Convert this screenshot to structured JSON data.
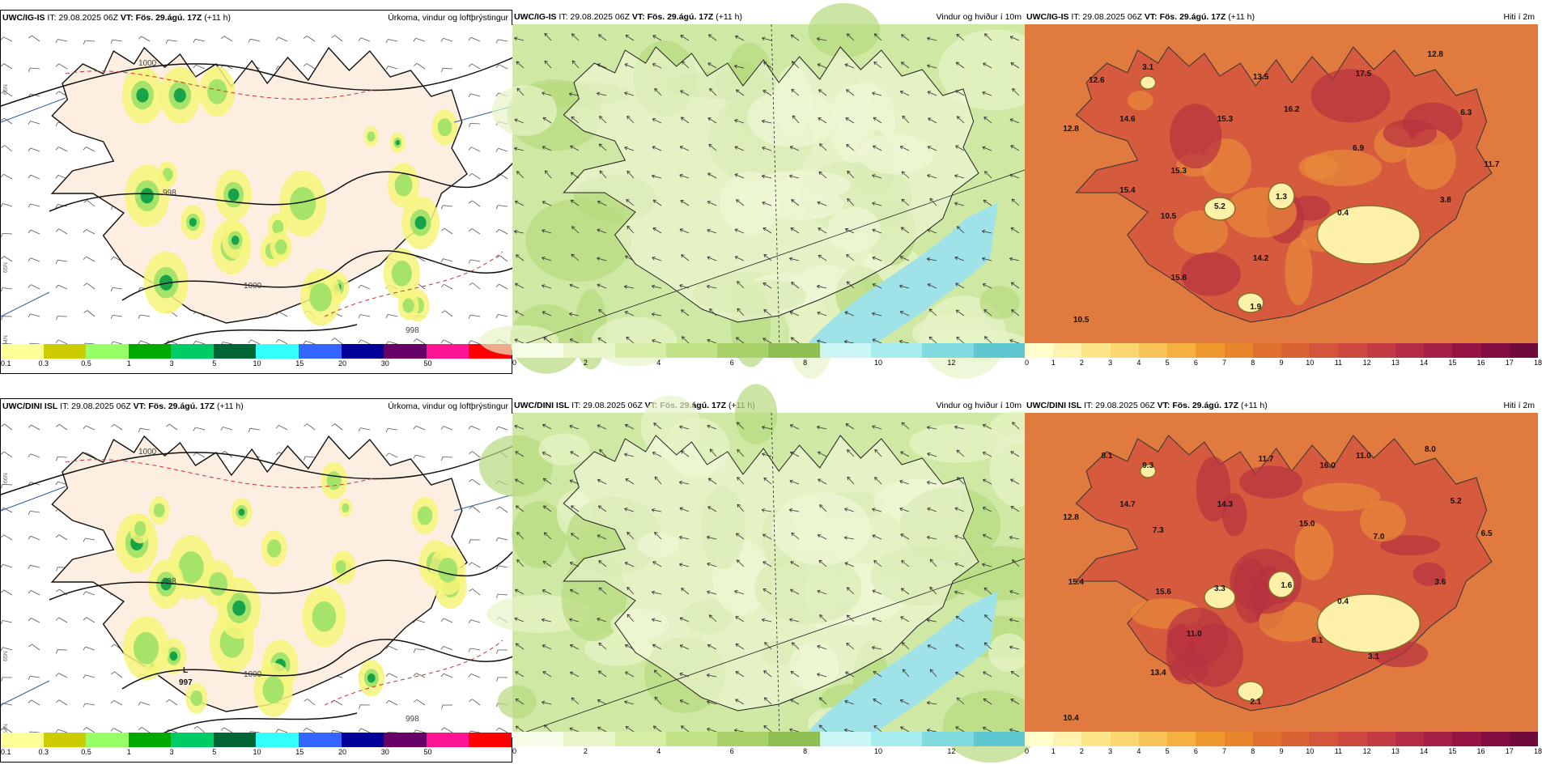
{
  "rows": [
    {
      "model": "UWC/IG-IS",
      "panels": [
        {
          "kind": "precip",
          "model": "UWC/IG-IS",
          "it_label": "IT: 29.08.2025 06Z",
          "vt_prefix": "VT:",
          "vt": "Fös. 29.ágú. 17Z",
          "lead": "(+11 h)",
          "title": "Úrkoma, vindur og loftþrýstingur",
          "isobars": [
            "1000",
            "998",
            "1000",
            "998"
          ],
          "grid_labels": [
            "66N",
            "65N",
            "64N"
          ],
          "low_center": null
        },
        {
          "kind": "wind",
          "model": "UWC/IG-IS",
          "it_label": "IT: 29.08.2025 06Z",
          "vt_prefix": "VT:",
          "vt": "Fös. 29.ágú. 17Z",
          "lead": "(+11 h)",
          "title": "Vindur og hviður í 10m"
        },
        {
          "kind": "temp",
          "model": "UWC/IG-IS",
          "it_label": "IT: 29.08.2025 06Z",
          "vt_prefix": "VT:",
          "vt": "Fös. 29.ágú. 17Z",
          "lead": "(+11 h)",
          "title": "Hiti í 2m",
          "values": [
            "12.6",
            "12.8",
            "14.6",
            "13.5",
            "15.3",
            "16.2",
            "17.5",
            "12.8",
            "6.3",
            "6.9",
            "11.7",
            "15.3",
            "15.4",
            "10.5",
            "5.2",
            "1.3",
            "0.4",
            "3.8",
            "14.2",
            "15.8",
            "1.9",
            "10.5",
            "3.1"
          ]
        }
      ]
    },
    {
      "model": "UWC/DINI ISL",
      "panels": [
        {
          "kind": "precip",
          "model": "UWC/DINI ISL",
          "it_label": "IT: 29.08.2025 06Z",
          "vt_prefix": "VT:",
          "vt": "Fös. 29.ágú. 17Z",
          "lead": "(+11 h)",
          "title": "Úrkoma, vindur og loftþrýstingur",
          "isobars": [
            "1000",
            "998",
            "1000",
            "998"
          ],
          "grid_labels": [
            "66N",
            "65N",
            "64N"
          ],
          "low_center": {
            "letter": "L",
            "value": "997"
          }
        },
        {
          "kind": "wind",
          "model": "UWC/DINI ISL",
          "it_label": "IT: 29.08.2025 06Z",
          "vt_prefix": "VT:",
          "vt": "Fös. 29.ágú. 17Z",
          "lead": "(+11 h)",
          "title": "Vindur og hviður í 10m"
        },
        {
          "kind": "temp",
          "model": "UWC/DINI ISL",
          "it_label": "IT: 29.08.2025 06Z",
          "vt_prefix": "VT:",
          "vt": "Fös. 29.ágú. 17Z",
          "lead": "(+11 h)",
          "title": "Hiti í 2m",
          "values": [
            "8.1",
            "9.3",
            "12.8",
            "14.7",
            "7.3",
            "14.3",
            "11.7",
            "16.0",
            "11.0",
            "8.0",
            "15.0",
            "5.2",
            "6.5",
            "7.0",
            "15.4",
            "15.6",
            "3.3",
            "1.6",
            "0.4",
            "3.6",
            "11.0",
            "8.1",
            "13.4",
            "3.1",
            "2.1",
            "10.4"
          ]
        }
      ]
    }
  ],
  "legends": {
    "precip": {
      "colors": [
        "#ffff99",
        "#cccc00",
        "#99ff66",
        "#00aa00",
        "#00cc66",
        "#006633",
        "#33ffff",
        "#3366ff",
        "#000099",
        "#660066",
        "#ff1493",
        "#ff0000"
      ],
      "ticks": [
        "0.1",
        "0.3",
        "0.5",
        "1",
        "3",
        "5",
        "10",
        "15",
        "20",
        "30",
        "50"
      ]
    },
    "wind": {
      "colors": [
        "#f7fce8",
        "#e9f6c9",
        "#d6eea6",
        "#c2e487",
        "#a8d16a",
        "#8fbe52",
        "#c9f5f5",
        "#a6ecef",
        "#80dbe0",
        "#5ec7cf"
      ],
      "ticks": [
        "0",
        "2",
        "4",
        "6",
        "8",
        "10",
        "12"
      ]
    },
    "temp": {
      "colors": [
        "#ffffcc",
        "#fff3b0",
        "#fde68a",
        "#fcd770",
        "#f9c558",
        "#f5b041",
        "#ef9a2f",
        "#e8842b",
        "#e07030",
        "#d96233",
        "#d4553b",
        "#cc4840",
        "#c23a42",
        "#b52d44",
        "#a61f44",
        "#951444",
        "#830c41",
        "#700a3b"
      ],
      "ticks": [
        "0",
        "1",
        "2",
        "3",
        "4",
        "5",
        "6",
        "7",
        "8",
        "9",
        "10",
        "11",
        "12",
        "13",
        "14",
        "15",
        "16",
        "17",
        "18"
      ]
    }
  }
}
